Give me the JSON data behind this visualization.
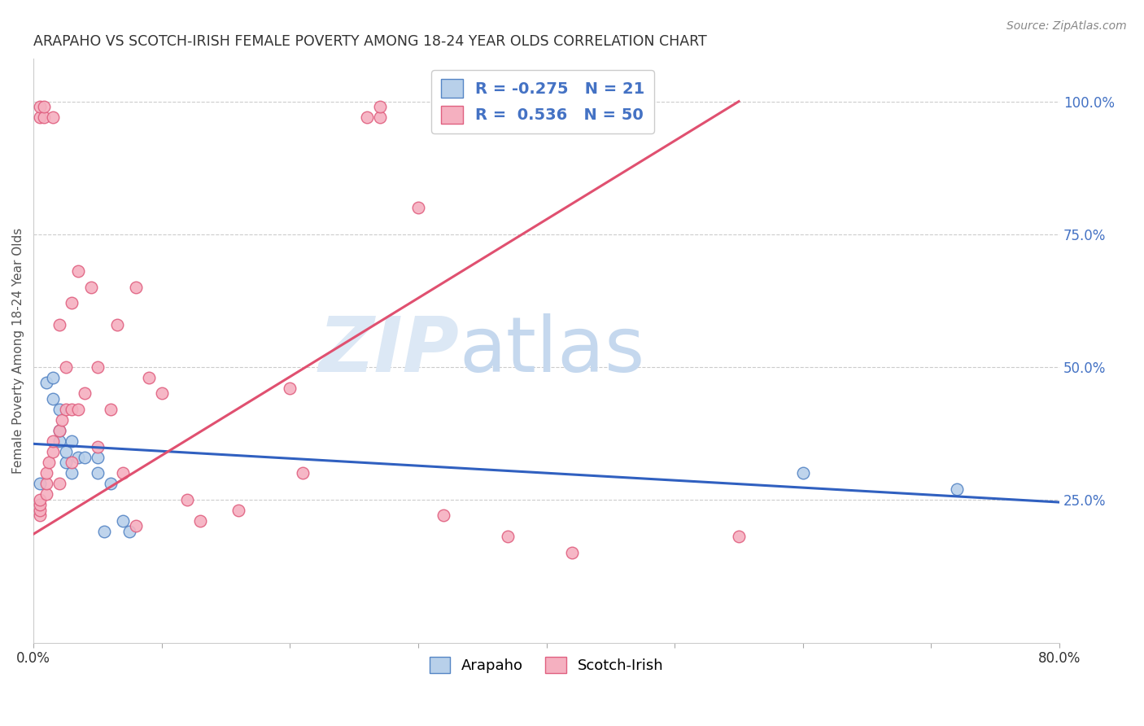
{
  "title": "ARAPAHO VS SCOTCH-IRISH FEMALE POVERTY AMONG 18-24 YEAR OLDS CORRELATION CHART",
  "source": "Source: ZipAtlas.com",
  "ylabel": "Female Poverty Among 18-24 Year Olds",
  "xlim": [
    0.0,
    0.8
  ],
  "ylim": [
    -0.02,
    1.08
  ],
  "xticks": [
    0.0,
    0.1,
    0.2,
    0.3,
    0.4,
    0.5,
    0.6,
    0.7,
    0.8
  ],
  "xtick_labels": [
    "0.0%",
    "",
    "",
    "",
    "",
    "",
    "",
    "",
    "80.0%"
  ],
  "ytick_right": [
    0.25,
    0.5,
    0.75,
    1.0
  ],
  "ytick_right_labels": [
    "25.0%",
    "50.0%",
    "75.0%",
    "100.0%"
  ],
  "arapaho_color": "#b8d0ea",
  "scotch_irish_color": "#f5b0c0",
  "arapaho_edge_color": "#5585c5",
  "scotch_irish_edge_color": "#e06080",
  "arapaho_line_color": "#3060c0",
  "scotch_irish_line_color": "#e05070",
  "legend_r_arapaho": "-0.275",
  "legend_n_arapaho": "21",
  "legend_r_scotch": "0.536",
  "legend_n_scotch": "50",
  "watermark_zip": "ZIP",
  "watermark_atlas": "atlas",
  "arapaho_line_x0": 0.0,
  "arapaho_line_y0": 0.355,
  "arapaho_line_x1": 0.8,
  "arapaho_line_y1": 0.245,
  "scotch_line_x0": 0.0,
  "scotch_line_y0": 0.185,
  "scotch_line_x1": 0.55,
  "scotch_line_y1": 1.0,
  "arapaho_x": [
    0.005,
    0.01,
    0.015,
    0.015,
    0.02,
    0.02,
    0.02,
    0.025,
    0.025,
    0.03,
    0.03,
    0.035,
    0.04,
    0.05,
    0.05,
    0.055,
    0.06,
    0.07,
    0.075,
    0.6,
    0.72
  ],
  "arapaho_y": [
    0.28,
    0.47,
    0.44,
    0.48,
    0.36,
    0.38,
    0.42,
    0.32,
    0.34,
    0.3,
    0.36,
    0.33,
    0.33,
    0.3,
    0.33,
    0.19,
    0.28,
    0.21,
    0.19,
    0.3,
    0.27
  ],
  "scotch_x": [
    0.005,
    0.005,
    0.005,
    0.005,
    0.005,
    0.005,
    0.008,
    0.008,
    0.01,
    0.01,
    0.01,
    0.012,
    0.015,
    0.015,
    0.015,
    0.02,
    0.02,
    0.02,
    0.022,
    0.025,
    0.025,
    0.03,
    0.03,
    0.03,
    0.035,
    0.035,
    0.04,
    0.045,
    0.05,
    0.05,
    0.06,
    0.065,
    0.07,
    0.08,
    0.08,
    0.09,
    0.1,
    0.12,
    0.13,
    0.16,
    0.2,
    0.21,
    0.26,
    0.27,
    0.27,
    0.3,
    0.32,
    0.37,
    0.42,
    0.55
  ],
  "scotch_y": [
    0.22,
    0.23,
    0.24,
    0.25,
    0.97,
    0.99,
    0.97,
    0.99,
    0.26,
    0.28,
    0.3,
    0.32,
    0.34,
    0.36,
    0.97,
    0.28,
    0.38,
    0.58,
    0.4,
    0.42,
    0.5,
    0.32,
    0.42,
    0.62,
    0.42,
    0.68,
    0.45,
    0.65,
    0.35,
    0.5,
    0.42,
    0.58,
    0.3,
    0.2,
    0.65,
    0.48,
    0.45,
    0.25,
    0.21,
    0.23,
    0.46,
    0.3,
    0.97,
    0.97,
    0.99,
    0.8,
    0.22,
    0.18,
    0.15,
    0.18
  ]
}
